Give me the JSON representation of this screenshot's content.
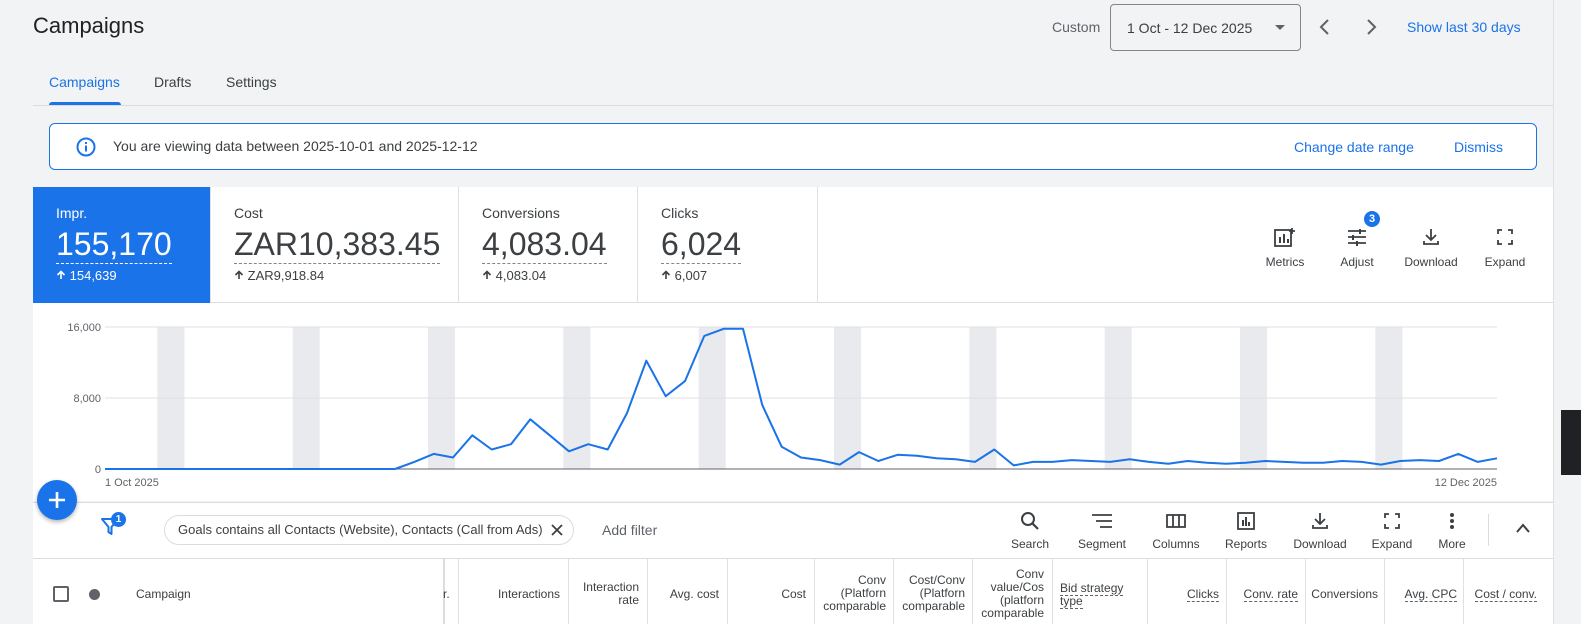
{
  "header": {
    "title": "Campaigns",
    "date_mode": "Custom",
    "date_range": "1 Oct - 12 Dec 2025",
    "show_last": "Show last 30 days"
  },
  "tabs": [
    {
      "label": "Campaigns",
      "active": true
    },
    {
      "label": "Drafts",
      "active": false
    },
    {
      "label": "Settings",
      "active": false
    }
  ],
  "banner": {
    "text": "You are viewing data between 2025-10-01 and 2025-12-12",
    "change_label": "Change date range",
    "dismiss_label": "Dismiss"
  },
  "metrics": [
    {
      "label": "Impr.",
      "value": "155,170",
      "delta": "154,639",
      "active": true
    },
    {
      "label": "Cost",
      "value": "ZAR10,383.45",
      "delta": "ZAR9,918.84",
      "active": false
    },
    {
      "label": "Conversions",
      "value": "4,083.04",
      "delta": "4,083.04",
      "active": false
    },
    {
      "label": "Clicks",
      "value": "6,024",
      "delta": "6,007",
      "active": false
    }
  ],
  "metric_tools": {
    "metrics": "Metrics",
    "adjust": "Adjust",
    "adjust_badge": "3",
    "download": "Download",
    "expand": "Expand"
  },
  "chart_data": {
    "type": "line",
    "x_start_label": "1 Oct 2025",
    "x_end_label": "12 Dec 2025",
    "y_ticks": [
      "16,000",
      "8,000",
      "0"
    ],
    "ylim": [
      0,
      16000
    ],
    "series": [
      {
        "values": [
          0,
          0,
          0,
          0,
          0,
          0,
          0,
          0,
          0,
          0,
          0,
          0,
          0,
          0,
          0,
          0,
          800,
          1700,
          1300,
          3800,
          2200,
          2800,
          5600,
          3800,
          2000,
          2800,
          2200,
          6300,
          12200,
          8200,
          9900,
          15000,
          15800,
          15800,
          7200,
          2500,
          1300,
          1000,
          500,
          1900,
          900,
          1600,
          1500,
          1200,
          1100,
          800,
          2200,
          400,
          800,
          800,
          1000,
          900,
          800,
          1100,
          800,
          600,
          900,
          700,
          600,
          700,
          900,
          800,
          700,
          700,
          900,
          800,
          500,
          900,
          1000,
          900,
          1700,
          800,
          1200
        ],
        "color": "#1a73e8"
      }
    ],
    "weekend_band_color": "#e8eaed",
    "grid": true
  },
  "filters": {
    "badge": "1",
    "chip": "Goals contains all Contacts (Website), Contacts (Call from Ads)",
    "add_filter": "Add filter"
  },
  "table_tools": [
    "Search",
    "Segment",
    "Columns",
    "Reports",
    "Download",
    "Expand",
    "More"
  ],
  "columns": {
    "campaign": "Campaign",
    "impr_partial": "r.",
    "interactions": "Interactions",
    "interaction_rate_1": "Interaction",
    "interaction_rate_2": "rate",
    "avg_cost": "Avg. cost",
    "cost": "Cost",
    "conv_pc_1": "Conv",
    "conv_pc_2": "(Platforn",
    "conv_pc_3": "comparable",
    "cpc_1": "Cost/Conv",
    "cpc_2": "(Platforn",
    "cpc_3": "comparable",
    "cv_1": "Conv",
    "cv_2": "value/Cos",
    "cv_3": "(platforn",
    "cv_4": "comparable",
    "bid_1": "Bid strategy",
    "bid_2": "type",
    "clicks": "Clicks",
    "conv_rate": "Conv. rate",
    "conversions": "Conversions",
    "avg_cpc": "Avg. CPC",
    "cost_conv": "Cost / conv."
  }
}
